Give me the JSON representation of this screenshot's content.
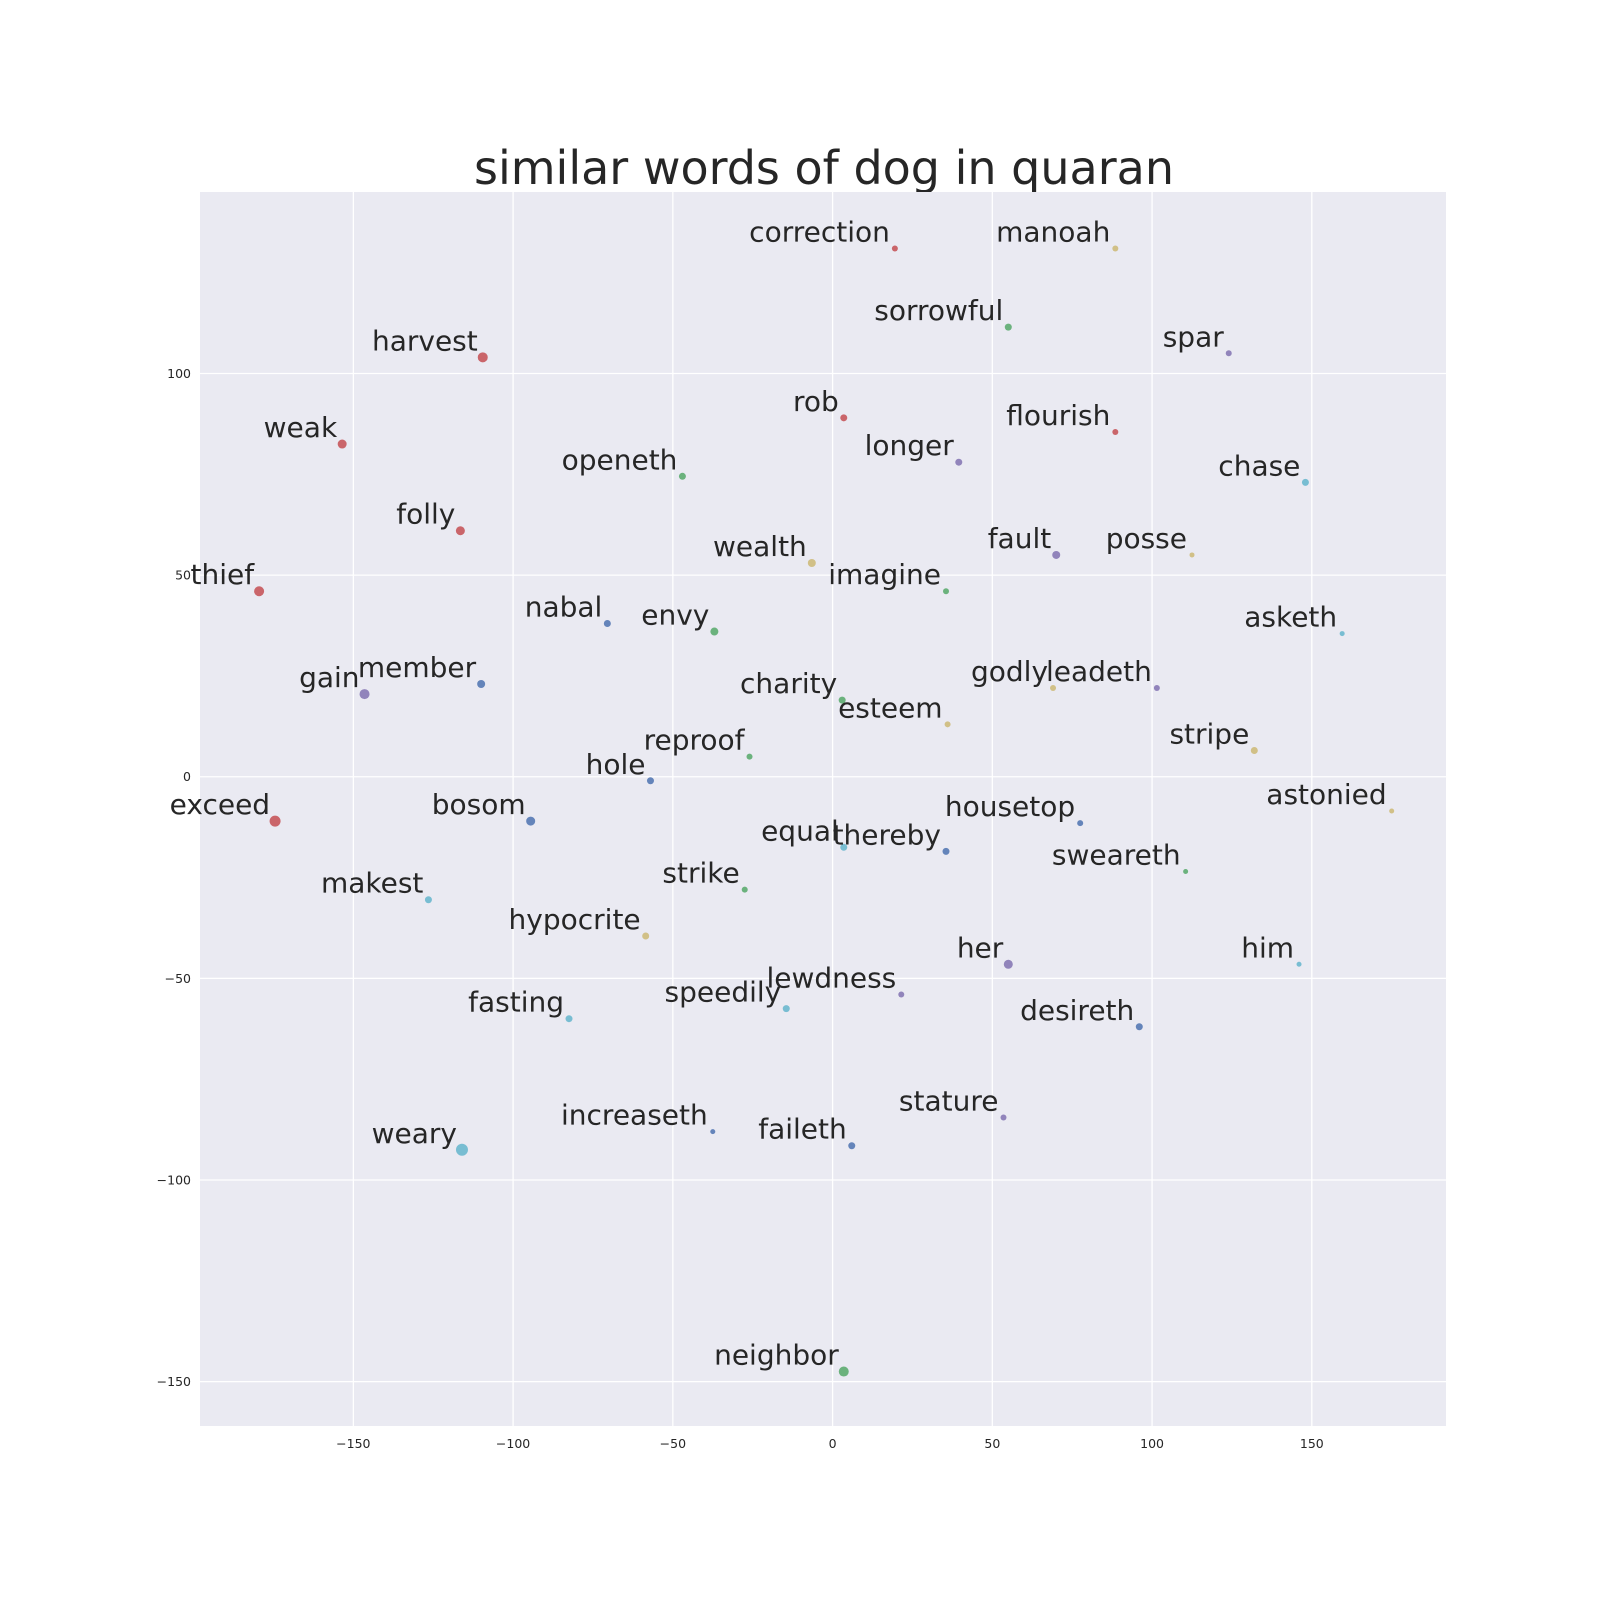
{
  "chart_data": {
    "type": "scatter",
    "title": "similar words of dog in quaran",
    "xlabel": "",
    "ylabel": "",
    "xlim": [
      -198,
      192
    ],
    "ylim": [
      -161,
      145
    ],
    "xticks": [
      -150,
      -100,
      -50,
      0,
      50,
      100,
      150
    ],
    "yticks": [
      100,
      50,
      0,
      -50,
      -100,
      -150
    ],
    "xtick_labels": [
      "−150",
      "−100",
      "−50",
      "0",
      "50",
      "100",
      "150"
    ],
    "ytick_labels": [
      "100",
      "50",
      "0",
      "−50",
      "−100",
      "−150"
    ],
    "grid": true,
    "legend": "none",
    "points": [
      {
        "label": "correction",
        "x": 19.5,
        "y": 131,
        "color": "#c44e52",
        "r": 3
      },
      {
        "label": "manoah",
        "x": 88.5,
        "y": 131,
        "color": "#ccb974",
        "r": 3
      },
      {
        "label": "sorrowful",
        "x": 55,
        "y": 111.5,
        "color": "#55a868",
        "r": 3.5
      },
      {
        "label": "spar",
        "x": 124,
        "y": 105,
        "color": "#8172b2",
        "r": 3
      },
      {
        "label": "harvest",
        "x": -109.5,
        "y": 104,
        "color": "#c44e52",
        "r": 5
      },
      {
        "label": "rob",
        "x": 3.5,
        "y": 89,
        "color": "#c44e52",
        "r": 3.5
      },
      {
        "label": "flourish",
        "x": 88.5,
        "y": 85.5,
        "color": "#c44e52",
        "r": 3
      },
      {
        "label": "weak",
        "x": -153.5,
        "y": 82.5,
        "color": "#c44e52",
        "r": 4.5
      },
      {
        "label": "longer",
        "x": 39.5,
        "y": 78,
        "color": "#8172b2",
        "r": 3.5
      },
      {
        "label": "openeth",
        "x": -47,
        "y": 74.5,
        "color": "#55a868",
        "r": 3.5
      },
      {
        "label": "chase",
        "x": 148,
        "y": 73,
        "color": "#64b5cd",
        "r": 3.5
      },
      {
        "label": "folly",
        "x": -116.5,
        "y": 61,
        "color": "#c44e52",
        "r": 4.5
      },
      {
        "label": "fault",
        "x": 70,
        "y": 55,
        "color": "#8172b2",
        "r": 4
      },
      {
        "label": "posse",
        "x": 112.5,
        "y": 55,
        "color": "#ccb974",
        "r": 2.5
      },
      {
        "label": "wealth",
        "x": -6.5,
        "y": 53,
        "color": "#ccb974",
        "r": 4
      },
      {
        "label": "imagine",
        "x": 35.5,
        "y": 46,
        "color": "#55a868",
        "r": 3
      },
      {
        "label": "thief",
        "x": -179.5,
        "y": 46,
        "color": "#c44e52",
        "r": 5
      },
      {
        "label": "nabal",
        "x": -70.5,
        "y": 38,
        "color": "#4c72b0",
        "r": 3.5
      },
      {
        "label": "envy",
        "x": -37,
        "y": 36,
        "color": "#55a868",
        "r": 4
      },
      {
        "label": "asketh",
        "x": 159.5,
        "y": 35.5,
        "color": "#64b5cd",
        "r": 2.5
      },
      {
        "label": "member",
        "x": -110,
        "y": 23,
        "color": "#4c72b0",
        "r": 4
      },
      {
        "label": "godly",
        "x": 69,
        "y": 22,
        "color": "#ccb974",
        "r": 3
      },
      {
        "label": "leadeth",
        "x": 101.5,
        "y": 22,
        "color": "#8172b2",
        "r": 3
      },
      {
        "label": "gain",
        "x": -146.5,
        "y": 20.5,
        "color": "#8172b2",
        "r": 5
      },
      {
        "label": "charity",
        "x": 3,
        "y": 19,
        "color": "#55a868",
        "r": 3.5
      },
      {
        "label": "esteem",
        "x": 36,
        "y": 13,
        "color": "#ccb974",
        "r": 3
      },
      {
        "label": "stripe",
        "x": 132,
        "y": 6.5,
        "color": "#ccb974",
        "r": 3.5
      },
      {
        "label": "reproof",
        "x": -26,
        "y": 5,
        "color": "#55a868",
        "r": 3
      },
      {
        "label": "hole",
        "x": -57,
        "y": -1,
        "color": "#4c72b0",
        "r": 3.5
      },
      {
        "label": "astonied",
        "x": 175,
        "y": -8.5,
        "color": "#ccb974",
        "r": 2.5
      },
      {
        "label": "exceed",
        "x": -174.5,
        "y": -11,
        "color": "#c44e52",
        "r": 5.5
      },
      {
        "label": "bosom",
        "x": -94.5,
        "y": -11,
        "color": "#4c72b0",
        "r": 4.5
      },
      {
        "label": "housetop",
        "x": 77.5,
        "y": -11.5,
        "color": "#4c72b0",
        "r": 3
      },
      {
        "label": "equal",
        "x": 3.5,
        "y": -17.5,
        "color": "#64b5cd",
        "r": 3.5
      },
      {
        "label": "thereby",
        "x": 35.5,
        "y": -18.5,
        "color": "#4c72b0",
        "r": 3.5
      },
      {
        "label": "sweareth",
        "x": 110.5,
        "y": -23.5,
        "color": "#55a868",
        "r": 2.5
      },
      {
        "label": "strike",
        "x": -27.5,
        "y": -28,
        "color": "#55a868",
        "r": 3
      },
      {
        "label": "makest",
        "x": -126.5,
        "y": -30.5,
        "color": "#64b5cd",
        "r": 3.5
      },
      {
        "label": "hypocrite",
        "x": -58.5,
        "y": -39.5,
        "color": "#ccb974",
        "r": 3.5
      },
      {
        "label": "her",
        "x": 55,
        "y": -46.5,
        "color": "#8172b2",
        "r": 4.5
      },
      {
        "label": "him",
        "x": 146,
        "y": -46.5,
        "color": "#64b5cd",
        "r": 2.5
      },
      {
        "label": "lewdness",
        "x": 21.5,
        "y": -54,
        "color": "#8172b2",
        "r": 3
      },
      {
        "label": "speedily",
        "x": -14.5,
        "y": -57.5,
        "color": "#64b5cd",
        "r": 3.5
      },
      {
        "label": "fasting",
        "x": -82.5,
        "y": -60,
        "color": "#64b5cd",
        "r": 3.5
      },
      {
        "label": "desireth",
        "x": 96,
        "y": -62,
        "color": "#4c72b0",
        "r": 3.5
      },
      {
        "label": "stature",
        "x": 53.5,
        "y": -84.5,
        "color": "#8172b2",
        "r": 3
      },
      {
        "label": "increaseth",
        "x": -37.5,
        "y": -88,
        "color": "#4c72b0",
        "r": 2.5
      },
      {
        "label": "faileth",
        "x": 6,
        "y": -91.5,
        "color": "#4c72b0",
        "r": 3.5
      },
      {
        "label": "weary",
        "x": -116,
        "y": -92.5,
        "color": "#64b5cd",
        "r": 6
      },
      {
        "label": "neighbor",
        "x": 3.5,
        "y": -147.5,
        "color": "#55a868",
        "r": 5
      }
    ]
  }
}
